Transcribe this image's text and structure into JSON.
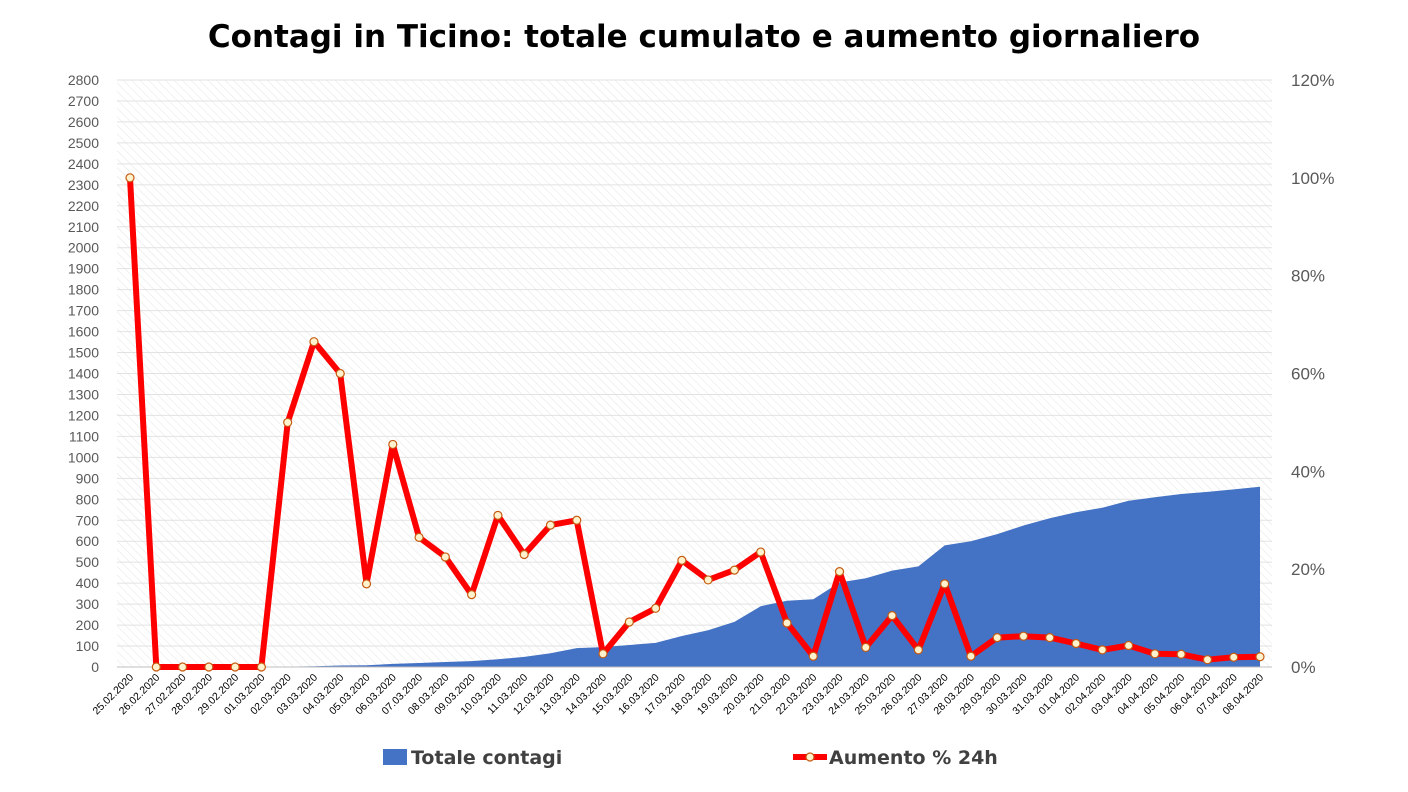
{
  "chart_data": {
    "type": "area",
    "title": "Contagi in Ticino: totale cumulato e aumento giornaliero",
    "grid": true,
    "legend_position": "bottom",
    "ylim": [
      0,
      2800
    ],
    "y_ticks": [
      0,
      100,
      200,
      300,
      400,
      500,
      600,
      700,
      800,
      900,
      1000,
      1100,
      1200,
      1300,
      1400,
      1500,
      1600,
      1700,
      1800,
      1900,
      2000,
      2100,
      2200,
      2300,
      2400,
      2500,
      2600,
      2700,
      2800
    ],
    "y2lim": [
      0,
      1.2
    ],
    "y2_ticks": [
      "0%",
      "20%",
      "40%",
      "60%",
      "80%",
      "100%",
      "120%"
    ],
    "categories": [
      "25.02.2020",
      "26.02.2020",
      "27.02.2020",
      "28.02.2020",
      "29.02.2020",
      "01.03.2020",
      "02.03.2020",
      "03.03.2020",
      "04.03.2020",
      "05.03.2020",
      "06.03.2020",
      "07.03.2020",
      "08.03.2020",
      "09.03.2020",
      "10.03.2020",
      "11.03.2020",
      "12.03.2020",
      "13.03.2020",
      "14.03.2020",
      "15.03.2020",
      "16.03.2020",
      "17.03.2020",
      "18.03.2020",
      "19.03.2020",
      "20.03.2020",
      "21.03.2020",
      "22.03.2020",
      "23.03.2020",
      "24.03.2020",
      "25.03.2020",
      "26.03.2020",
      "27.03.2020",
      "28.03.2020",
      "29.03.2020",
      "30.03.2020",
      "31.03.2020",
      "01.04.2020",
      "02.04.2020",
      "03.04.2020",
      "04.04.2020",
      "05.04.2020",
      "06.04.2020",
      "07.04.2020",
      "08.04.2020"
    ],
    "series": [
      {
        "name": "Totale contagi",
        "type": "area",
        "axis": "left",
        "color": "#4472C4",
        "values": [
          1,
          1,
          1,
          1,
          1,
          1,
          2,
          4,
          7,
          8,
          15,
          19,
          24,
          28,
          37,
          48,
          66,
          90,
          95,
          105,
          115,
          148,
          175,
          215,
          290,
          316,
          323,
          403,
          423,
          460,
          480,
          580,
          600,
          634,
          675,
          710,
          738,
          760,
          793,
          810,
          825,
          835,
          847,
          860
        ]
      },
      {
        "name": "Aumento % 24h",
        "type": "line",
        "axis": "right",
        "color": "#FF0000",
        "values": [
          1.0,
          0,
          0,
          0,
          0,
          0,
          0.5,
          0.665,
          0.6,
          0.17,
          0.455,
          0.265,
          0.225,
          0.148,
          0.31,
          0.23,
          0.29,
          0.3,
          0.027,
          0.092,
          0.12,
          0.218,
          0.178,
          0.198,
          0.235,
          0.09,
          0.022,
          0.195,
          0.04,
          0.105,
          0.035,
          0.17,
          0.022,
          0.06,
          0.063,
          0.06,
          0.048,
          0.035,
          0.044,
          0.027,
          0.026,
          0.015,
          0.02,
          0.021
        ]
      }
    ]
  },
  "legend": {
    "area_label": "Totale contagi",
    "line_label": "Aumento % 24h"
  },
  "colors": {
    "area": "#4472C4",
    "line": "#FF0000",
    "marker_fill": "#FFF2CC",
    "marker_stroke": "#C55A11"
  }
}
